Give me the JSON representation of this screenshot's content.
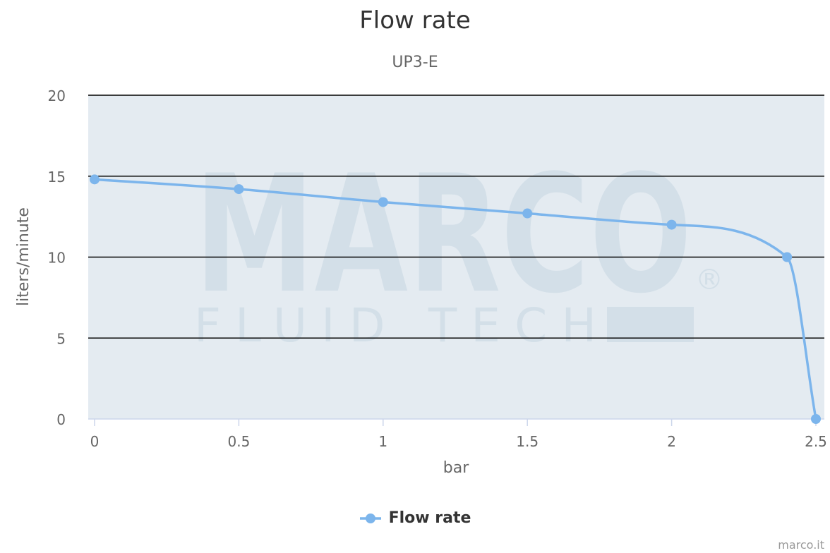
{
  "watermark": {
    "line1": "MARCO",
    "line2": "FLUID TECH",
    "mark": "®"
  },
  "credits": "marco.it",
  "legend": {
    "label": "Flow rate"
  },
  "colors": {
    "series": "#7cb5ec",
    "plot_background": "#e4ebf1",
    "grid": "#000000",
    "watermark": "#d3dfe8",
    "axis_label": "#666666",
    "title": "#333333"
  },
  "chart_data": {
    "type": "line",
    "title": "Flow rate",
    "subtitle": "UP3-E",
    "xlabel": "bar",
    "ylabel": "liters/minute",
    "xlim": [
      0,
      2.5
    ],
    "ylim": [
      0,
      20
    ],
    "x_ticks": [
      "0",
      "0.5",
      "1",
      "1.5",
      "2",
      "2.5"
    ],
    "y_ticks": [
      "0",
      "5",
      "10",
      "15",
      "20"
    ],
    "grid": true,
    "legend_position": "bottom-center",
    "series": [
      {
        "name": "Flow rate",
        "x": [
          0,
          0.5,
          1,
          1.5,
          2,
          2.4,
          2.5
        ],
        "y": [
          14.8,
          14.2,
          13.4,
          12.7,
          12,
          10,
          0
        ]
      }
    ]
  }
}
